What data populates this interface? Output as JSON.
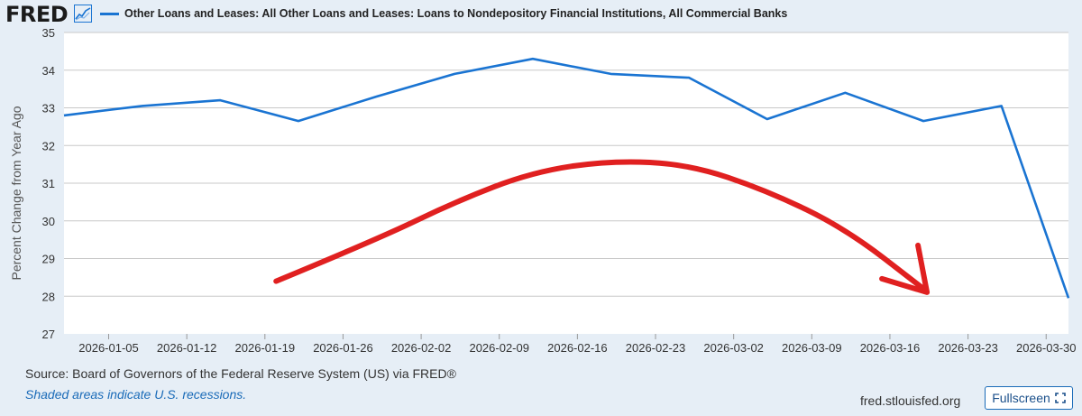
{
  "header": {
    "logo_text": "FRED",
    "logo_icon": "chart-line-icon",
    "legend_label": "Other Loans and Leases: All Other Loans and Leases: Loans to Nondepository Financial Institutions, All Commercial Banks"
  },
  "chart_data": {
    "type": "line",
    "title": "Other Loans and Leases: All Other Loans and Leases: Loans to Nondepository Financial Institutions, All Commercial Banks",
    "xlabel": "",
    "ylabel": "Percent Change from Year Ago",
    "ylim": [
      27,
      35
    ],
    "yticks": [
      27,
      28,
      29,
      30,
      31,
      32,
      33,
      34,
      35
    ],
    "xlim": [
      "2026-01-01",
      "2026-04-01"
    ],
    "xticks": [
      "2026-01-05",
      "2026-01-12",
      "2026-01-19",
      "2026-01-26",
      "2026-02-02",
      "2026-02-09",
      "2026-02-16",
      "2026-02-23",
      "2026-03-02",
      "2026-03-09",
      "2026-03-16",
      "2026-03-23",
      "2026-03-30"
    ],
    "grid": true,
    "series": [
      {
        "name": "Other Loans and Leases: All Other Loans and Leases: Loans to Nondepository Financial Institutions, All Commercial Banks",
        "color": "#1a74d2",
        "x": [
          "2026-01-01",
          "2026-01-08",
          "2026-01-15",
          "2026-01-22",
          "2026-01-29",
          "2026-02-05",
          "2026-02-12",
          "2026-02-19",
          "2026-02-26",
          "2026-03-05",
          "2026-03-12",
          "2026-03-19",
          "2026-03-26",
          "2026-04-01"
        ],
        "values": [
          32.8,
          33.05,
          33.2,
          32.65,
          33.3,
          33.9,
          34.3,
          33.9,
          33.8,
          32.7,
          33.4,
          32.65,
          33.05,
          27.95
        ]
      }
    ],
    "annotation": {
      "type": "hand-drawn-arrow",
      "color": "#e02020",
      "description_points": [
        [
          "2026-01-20",
          28.4
        ],
        [
          "2026-01-29",
          29.5
        ],
        [
          "2026-02-05",
          30.5
        ],
        [
          "2026-02-12",
          31.3
        ],
        [
          "2026-02-19",
          31.6
        ],
        [
          "2026-02-26",
          31.5
        ],
        [
          "2026-03-05",
          30.8
        ],
        [
          "2026-03-12",
          29.8
        ],
        [
          "2026-03-19",
          28.2
        ]
      ]
    }
  },
  "footer": {
    "source": "Source: Board of Governors of the Federal Reserve System (US) via FRED®",
    "recession_note": "Shaded areas indicate U.S. recessions.",
    "site": "fred.stlouisfed.org",
    "fullscreen_label": "Fullscreen"
  }
}
